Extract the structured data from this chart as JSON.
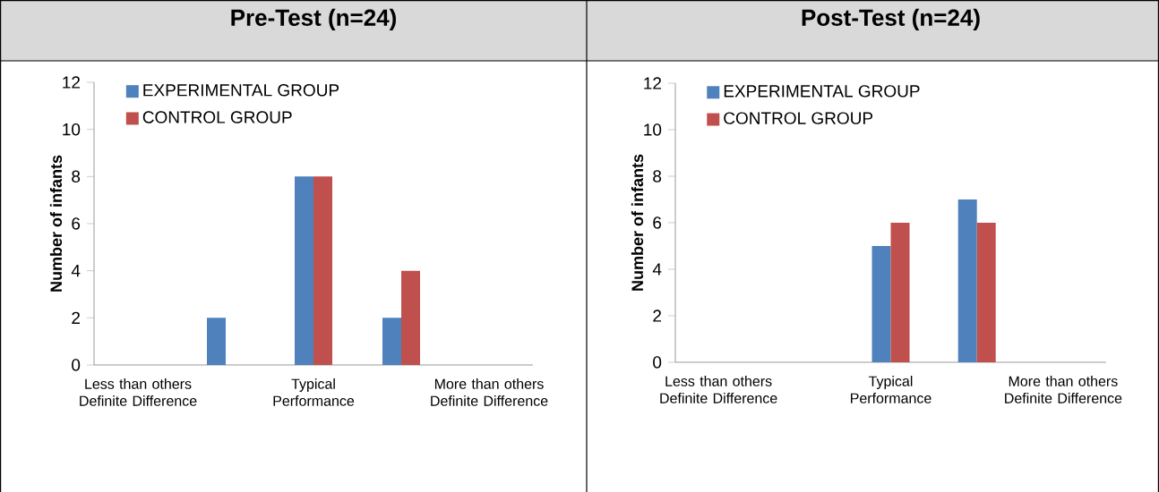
{
  "chart_data": [
    {
      "type": "bar",
      "title": "Pre-Test (n=24)",
      "ylabel": "Number of infants",
      "categories": [
        "Less than others Definite Difference",
        null,
        "Typical Performance",
        null,
        "More than others Definite Difference"
      ],
      "series": [
        {
          "name": "EXPERIMENTAL GROUP",
          "color": "#4f81bd",
          "values": [
            0,
            2,
            8,
            2,
            0
          ]
        },
        {
          "name": "CONTROL GROUP",
          "color": "#c0504d",
          "values": [
            0,
            0,
            8,
            4,
            0
          ]
        }
      ],
      "ylim": [
        0,
        12
      ],
      "yticks": [
        0,
        2,
        4,
        6,
        8,
        10,
        12
      ],
      "legend": "top left"
    },
    {
      "type": "bar",
      "title": "Post-Test (n=24)",
      "ylabel": "Number of infants",
      "categories": [
        "Less than others Definite Difference",
        null,
        "Typical Performance",
        null,
        "More than others Definite Difference"
      ],
      "series": [
        {
          "name": "EXPERIMENTAL GROUP",
          "color": "#4f81bd",
          "values": [
            0,
            0,
            5,
            7,
            0
          ]
        },
        {
          "name": "CONTROL GROUP",
          "color": "#c0504d",
          "values": [
            0,
            0,
            6,
            6,
            0
          ]
        }
      ],
      "ylim": [
        0,
        12
      ],
      "yticks": [
        0,
        2,
        4,
        6,
        8,
        10,
        12
      ],
      "legend": "top left"
    }
  ]
}
